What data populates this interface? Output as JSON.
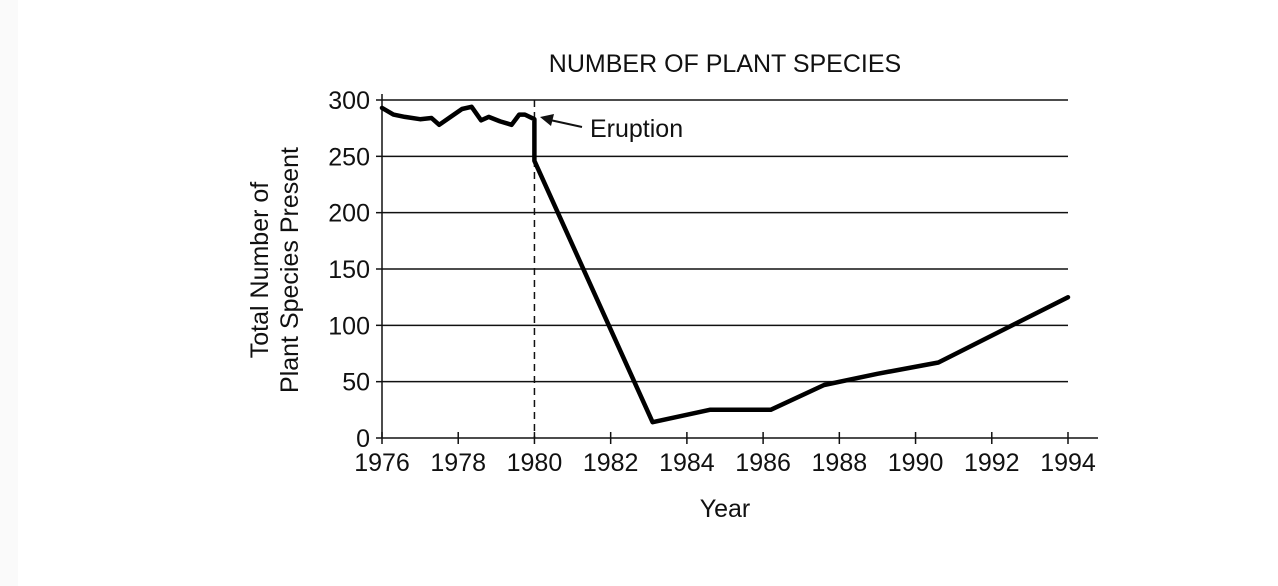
{
  "chart_data": {
    "type": "line",
    "title": "NUMBER OF PLANT SPECIES",
    "xlabel": "Year",
    "ylabel": [
      "Total Number of",
      "Plant Species Present"
    ],
    "xlim": [
      1976,
      1994
    ],
    "ylim": [
      0,
      300
    ],
    "xticks": [
      1976,
      1978,
      1980,
      1982,
      1984,
      1986,
      1988,
      1990,
      1992,
      1994
    ],
    "yticks": [
      0,
      50,
      100,
      150,
      200,
      250,
      300
    ],
    "grid": "horizontal",
    "annotation": {
      "text": "Eruption",
      "x": 1980
    },
    "series": [
      {
        "x": [
          1976.0,
          1976.3,
          1976.6,
          1977.0,
          1977.3,
          1977.5,
          1977.8,
          1978.1,
          1978.35,
          1978.6,
          1978.8,
          1979.1,
          1979.4,
          1979.6,
          1979.75,
          1980.0,
          1980.0,
          1983.1,
          1984.6,
          1986.2,
          1987.6,
          1989.0,
          1990.6,
          1994.0
        ],
        "y": [
          293,
          287,
          285,
          283,
          284,
          278,
          285,
          292,
          294,
          282,
          285,
          281,
          278,
          287,
          287,
          283,
          246,
          14,
          25,
          25,
          47,
          57,
          67,
          125
        ]
      }
    ]
  }
}
